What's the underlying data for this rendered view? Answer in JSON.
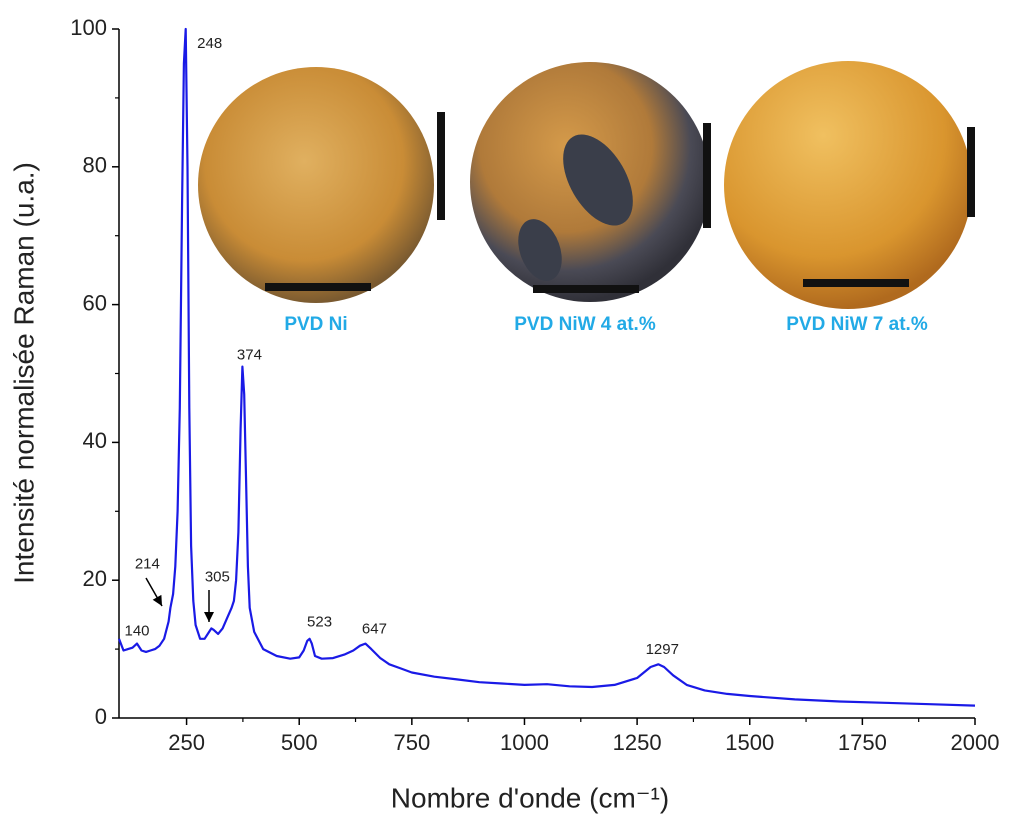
{
  "chart_data": {
    "type": "line",
    "xlabel": "Nombre d'onde (cm⁻¹)",
    "ylabel": "Intensité normalisée Raman (u.a.)",
    "color": "#1a1ae6",
    "xlim": [
      100,
      2000
    ],
    "xticks": [
      250,
      500,
      750,
      1000,
      1250,
      1500,
      1750,
      2000
    ],
    "ylim": [
      0,
      100
    ],
    "yticks": [
      0,
      20,
      40,
      60,
      80,
      100
    ],
    "x": [
      100,
      110,
      120,
      130,
      140,
      150,
      160,
      170,
      180,
      190,
      200,
      210,
      214,
      220,
      225,
      230,
      235,
      240,
      244,
      248,
      252,
      256,
      260,
      265,
      270,
      280,
      290,
      300,
      305,
      310,
      320,
      330,
      340,
      350,
      355,
      360,
      365,
      370,
      374,
      378,
      382,
      386,
      390,
      400,
      420,
      450,
      480,
      500,
      510,
      518,
      523,
      528,
      535,
      550,
      575,
      600,
      620,
      635,
      647,
      660,
      680,
      700,
      725,
      750,
      800,
      850,
      900,
      950,
      1000,
      1050,
      1100,
      1150,
      1200,
      1250,
      1280,
      1297,
      1310,
      1330,
      1360,
      1400,
      1450,
      1500,
      1600,
      1700,
      1800,
      1900,
      2000
    ],
    "values": [
      11.5,
      9.8,
      10,
      10.2,
      10.8,
      9.8,
      9.6,
      9.8,
      10,
      10.5,
      11.5,
      14,
      16,
      18,
      22,
      30,
      45,
      75,
      95,
      100,
      80,
      45,
      25,
      17,
      13.5,
      11.5,
      11.5,
      12.5,
      13,
      12.8,
      12.2,
      13,
      14.5,
      16,
      17,
      20,
      27,
      42,
      51,
      47,
      35,
      22,
      16,
      12.5,
      10,
      9,
      8.6,
      8.8,
      9.8,
      11.2,
      11.5,
      10.8,
      9,
      8.6,
      8.7,
      9.2,
      9.8,
      10.5,
      10.8,
      10,
      8.7,
      7.8,
      7.2,
      6.6,
      6,
      5.6,
      5.2,
      5,
      4.8,
      4.9,
      4.6,
      4.5,
      4.8,
      5.8,
      7.4,
      7.8,
      7.4,
      6.2,
      4.8,
      4,
      3.5,
      3.2,
      2.7,
      2.4,
      2.2,
      2,
      1.8
    ],
    "peak_labels": [
      140,
      214,
      248,
      305,
      374,
      523,
      647,
      1297
    ],
    "insets": [
      "PVD Ni",
      "PVD NiW 4 at.%",
      "PVD NiW 7 at.%"
    ]
  }
}
